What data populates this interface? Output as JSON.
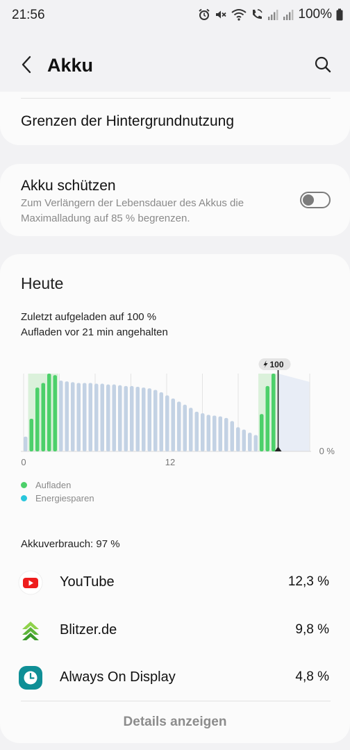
{
  "status_bar": {
    "time": "21:56",
    "battery_percent": "100%",
    "icons": [
      "alarm-icon",
      "mute-icon",
      "wifi-icon",
      "wifi-call-icon",
      "signal-icon",
      "signal-icon",
      "battery-icon"
    ]
  },
  "app_bar": {
    "title": "Akku",
    "back_icon": "chevron-left-icon",
    "search_icon": "search-icon"
  },
  "background_limits": {
    "label": "Grenzen der Hintergrundnutzung"
  },
  "protect_battery": {
    "title": "Akku schützen",
    "description": "Zum Verlängern der Lebensdauer des Akkus die Maximalladung auf 85 % begrenzen.",
    "enabled": false
  },
  "today": {
    "title": "Heute",
    "last_charged": "Zuletzt aufgeladen auf 100 %",
    "charging_paused": "Aufladen vor 21 min angehalten",
    "legend": [
      {
        "label": "Aufladen",
        "color": "#4cd06a"
      },
      {
        "label": "Energiesparen",
        "color": "#29c6dc"
      }
    ],
    "usage_total": "Akkuverbrauch: 97 %",
    "apps": [
      {
        "name": "YouTube",
        "percent": "12,3 %",
        "icon": "youtube-icon"
      },
      {
        "name": "Blitzer.de",
        "percent": "9,8 %",
        "icon": "blitzer-icon"
      },
      {
        "name": "Always On Display",
        "percent": "4,8 %",
        "icon": "clock-icon"
      }
    ],
    "details_button": "Details anzeigen"
  },
  "chart_data": {
    "type": "bar",
    "xlabel": "",
    "ylabel": "",
    "x_ticks": [
      "0",
      "12"
    ],
    "y_min_label": "0 %",
    "now_marker_label": "100",
    "ylim": [
      0,
      100
    ],
    "colors": {
      "charging": "#4cd06a",
      "normal": "#c3d2e4",
      "charging_zone": "#cdeccd",
      "forecast": "#e8edf6"
    },
    "bars": [
      {
        "v": 19,
        "c": false
      },
      {
        "v": 42,
        "c": true
      },
      {
        "v": 82,
        "c": true
      },
      {
        "v": 88,
        "c": true
      },
      {
        "v": 100,
        "c": true
      },
      {
        "v": 98,
        "c": true
      },
      {
        "v": 91,
        "c": false
      },
      {
        "v": 90,
        "c": false
      },
      {
        "v": 89,
        "c": false
      },
      {
        "v": 88,
        "c": false
      },
      {
        "v": 88,
        "c": false
      },
      {
        "v": 88,
        "c": false
      },
      {
        "v": 87,
        "c": false
      },
      {
        "v": 87,
        "c": false
      },
      {
        "v": 86,
        "c": false
      },
      {
        "v": 86,
        "c": false
      },
      {
        "v": 85,
        "c": false
      },
      {
        "v": 84,
        "c": false
      },
      {
        "v": 84,
        "c": false
      },
      {
        "v": 83,
        "c": false
      },
      {
        "v": 82,
        "c": false
      },
      {
        "v": 81,
        "c": false
      },
      {
        "v": 79,
        "c": false
      },
      {
        "v": 76,
        "c": false
      },
      {
        "v": 72,
        "c": false
      },
      {
        "v": 68,
        "c": false
      },
      {
        "v": 64,
        "c": false
      },
      {
        "v": 60,
        "c": false
      },
      {
        "v": 56,
        "c": false
      },
      {
        "v": 51,
        "c": false
      },
      {
        "v": 49,
        "c": false
      },
      {
        "v": 47,
        "c": false
      },
      {
        "v": 46,
        "c": false
      },
      {
        "v": 45,
        "c": false
      },
      {
        "v": 43,
        "c": false
      },
      {
        "v": 39,
        "c": false
      },
      {
        "v": 31,
        "c": false
      },
      {
        "v": 28,
        "c": false
      },
      {
        "v": 24,
        "c": false
      },
      {
        "v": 21,
        "c": false
      },
      {
        "v": 48,
        "c": true
      },
      {
        "v": 84,
        "c": true
      },
      {
        "v": 100,
        "c": true
      }
    ]
  }
}
